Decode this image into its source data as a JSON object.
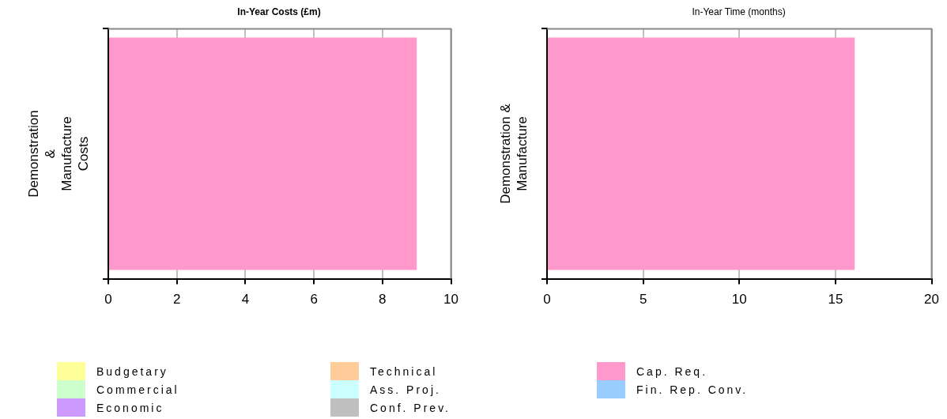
{
  "chart_data": [
    {
      "type": "bar",
      "orientation": "horizontal",
      "stacked": true,
      "title": "In-Year Costs (£m)",
      "categories": [
        "Demonstration & Manufacture Costs"
      ],
      "xlim": [
        0,
        10
      ],
      "xticks": [
        0,
        2,
        4,
        6,
        8,
        10
      ],
      "grid": "x",
      "legend": "bottom",
      "series": [
        {
          "name": "Budgetary",
          "color": "#ffff99",
          "values": [
            0
          ]
        },
        {
          "name": "Commercial",
          "color": "#ccffcc",
          "values": [
            0
          ]
        },
        {
          "name": "Economic",
          "color": "#cc99ff",
          "values": [
            0
          ]
        },
        {
          "name": "Technical",
          "color": "#ffcc99",
          "values": [
            0
          ]
        },
        {
          "name": "Ass. Proj.",
          "color": "#ccffff",
          "values": [
            0
          ]
        },
        {
          "name": "Conf. Prev.",
          "color": "#c0c0c0",
          "values": [
            0
          ]
        },
        {
          "name": "Cap. Req.",
          "color": "#ff99cc",
          "values": [
            9
          ]
        },
        {
          "name": "Fin. Rep. Conv.",
          "color": "#99ccff",
          "values": [
            0
          ]
        }
      ]
    },
    {
      "type": "bar",
      "orientation": "horizontal",
      "stacked": true,
      "title": "In-Year Time (months)",
      "categories": [
        "Demonstration & Manufacture"
      ],
      "xlim": [
        0,
        20
      ],
      "xticks": [
        0,
        5,
        10,
        15,
        20
      ],
      "grid": "x",
      "series": [
        {
          "color": "#ffff99",
          "values": [
            0
          ]
        },
        {
          "color": "#ccffcc",
          "values": [
            0
          ]
        },
        {
          "color": "#cc99ff",
          "values": [
            0
          ]
        },
        {
          "color": "#ffcc99",
          "values": [
            0
          ]
        },
        {
          "color": "#ccffff",
          "values": [
            0
          ]
        },
        {
          "color": "#c0c0c0",
          "values": [
            0
          ]
        },
        {
          "color": "#ff99cc",
          "values": [
            16
          ]
        },
        {
          "color": "#99ccff",
          "values": [
            0
          ]
        }
      ]
    }
  ]
}
